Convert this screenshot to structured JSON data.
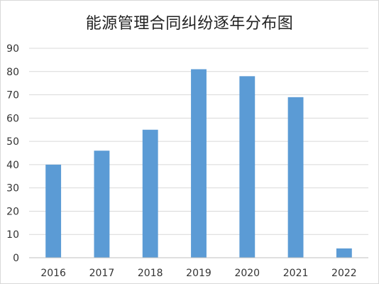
{
  "chart_data": {
    "type": "bar",
    "title": "能源管理合同纠纷逐年分布图",
    "categories": [
      "2016",
      "2017",
      "2018",
      "2019",
      "2020",
      "2021",
      "2022"
    ],
    "values": [
      40,
      46,
      55,
      81,
      78,
      69,
      4
    ],
    "xlabel": "",
    "ylabel": "",
    "ylim": [
      0,
      90
    ],
    "yticks": [
      0,
      10,
      20,
      30,
      40,
      50,
      60,
      70,
      80,
      90
    ],
    "grid": true,
    "legend": "none",
    "colors": {
      "bar": "#5b9bd5",
      "gridline": "#d9d9d9",
      "axis_line": "#bfbfbf"
    }
  }
}
